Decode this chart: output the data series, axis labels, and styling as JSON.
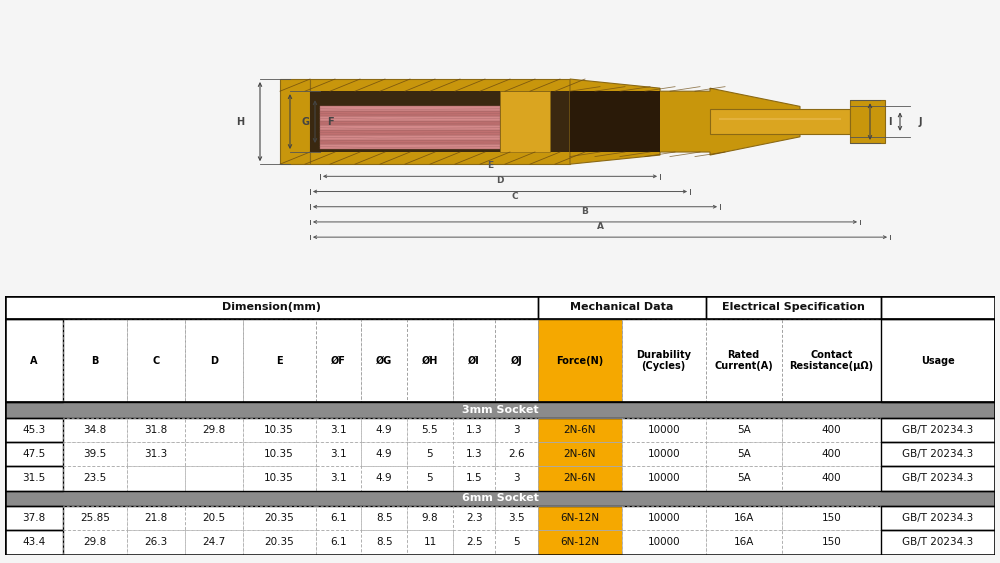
{
  "background_color": "#f5f5f5",
  "col_headers": [
    "A",
    "B",
    "C",
    "D",
    "E",
    "ØF",
    "ØG",
    "ØH",
    "ØI",
    "ØJ",
    "Force(N)",
    "Durability\n(Cycles)",
    "Rated\nCurrent(A)",
    "Contact\nResistance(μΩ)",
    "Usage"
  ],
  "data_rows": [
    [
      "45.3",
      "34.8",
      "31.8",
      "29.8",
      "10.35",
      "3.1",
      "4.9",
      "5.5",
      "1.3",
      "3",
      "2N-6N",
      "10000",
      "5A",
      "400",
      "GB/T 20234.3"
    ],
    [
      "47.5",
      "39.5",
      "31.3",
      "",
      "10.35",
      "3.1",
      "4.9",
      "5",
      "1.3",
      "2.6",
      "2N-6N",
      "10000",
      "5A",
      "400",
      "GB/T 20234.3"
    ],
    [
      "31.5",
      "23.5",
      "",
      "",
      "10.35",
      "3.1",
      "4.9",
      "5",
      "1.5",
      "3",
      "2N-6N",
      "10000",
      "5A",
      "400",
      "GB/T 20234.3"
    ],
    [
      "37.8",
      "25.85",
      "21.8",
      "20.5",
      "20.35",
      "6.1",
      "8.5",
      "9.8",
      "2.3",
      "3.5",
      "6N-12N",
      "10000",
      "16A",
      "150",
      "GB/T 20234.3"
    ],
    [
      "43.4",
      "29.8",
      "26.3",
      "24.7",
      "20.35",
      "6.1",
      "8.5",
      "11",
      "2.5",
      "5",
      "6N-12N",
      "10000",
      "16A",
      "150",
      "GB/T 20234.3"
    ]
  ],
  "force_col_index": 10,
  "force_color": "#F5A800",
  "section_bg_color": "#8B8B8B",
  "section_text_color": "#ffffff",
  "col_widths": [
    3.8,
    4.2,
    3.8,
    3.8,
    4.8,
    3.0,
    3.0,
    3.0,
    2.8,
    2.8,
    5.5,
    5.5,
    5.0,
    6.5,
    7.5
  ],
  "text_color": "#111111",
  "dim_line_color": "#555555",
  "connector": {
    "body_gold": "#C8960C",
    "body_gold_dark": "#8B6914",
    "body_gold_mid": "#DAA520",
    "body_gold_light": "#E8B84B",
    "spring_pink": "#D4898A",
    "spring_dark": "#9B5E5E",
    "spring_mid": "#C07070",
    "inner_bg": "#8B5E3C",
    "hatch_color": "#6B4A10"
  }
}
